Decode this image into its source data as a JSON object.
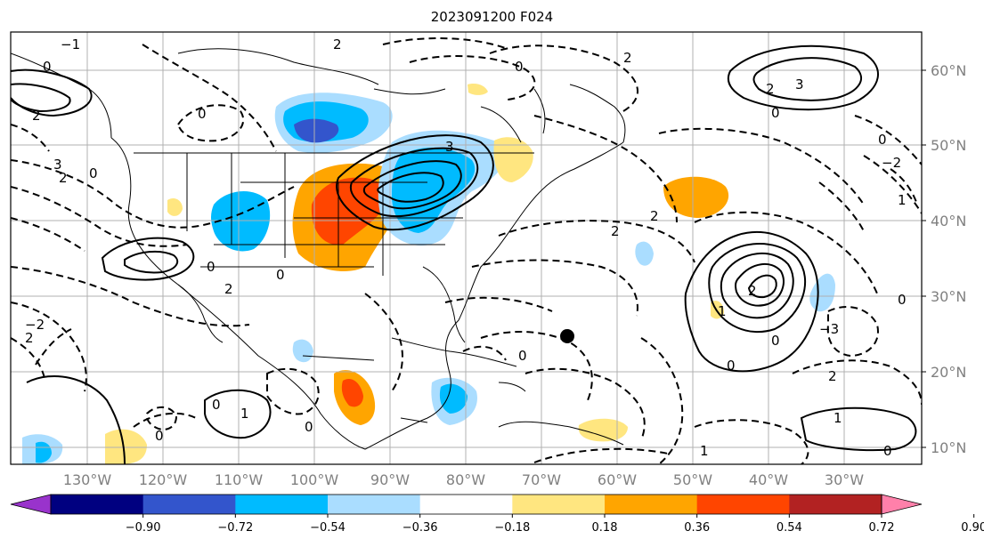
{
  "title": "2023091200 F024",
  "latitude_labels": [
    "60°N",
    "50°N",
    "40°N",
    "30°N",
    "20°N",
    "10°N"
  ],
  "longitude_labels": [
    "130°W",
    "120°W",
    "110°W",
    "100°W",
    "90°W",
    "80°W",
    "70°W",
    "60°W",
    "50°W",
    "40°W",
    "30°W"
  ],
  "colorbar": {
    "tick_labels": [
      "−0.90",
      "−0.72",
      "−0.54",
      "−0.36",
      "−0.18",
      "0.18",
      "0.36",
      "0.54",
      "0.72",
      "0.90"
    ],
    "colors": [
      "#9933cc",
      "#000080",
      "#3355cc",
      "#00bbff",
      "#aaddff",
      "#ffffff",
      "#ffe680",
      "#ffa500",
      "#ff4500",
      "#b22222",
      "#ff80aa"
    ]
  },
  "contour_labels": [
    "0",
    "1",
    "2",
    "3",
    "−1",
    "−2",
    "−3"
  ],
  "colors": {
    "grid": "#b0b0b0",
    "coast": "#000000",
    "frame": "#000000",
    "axis_text": "#808080"
  }
}
